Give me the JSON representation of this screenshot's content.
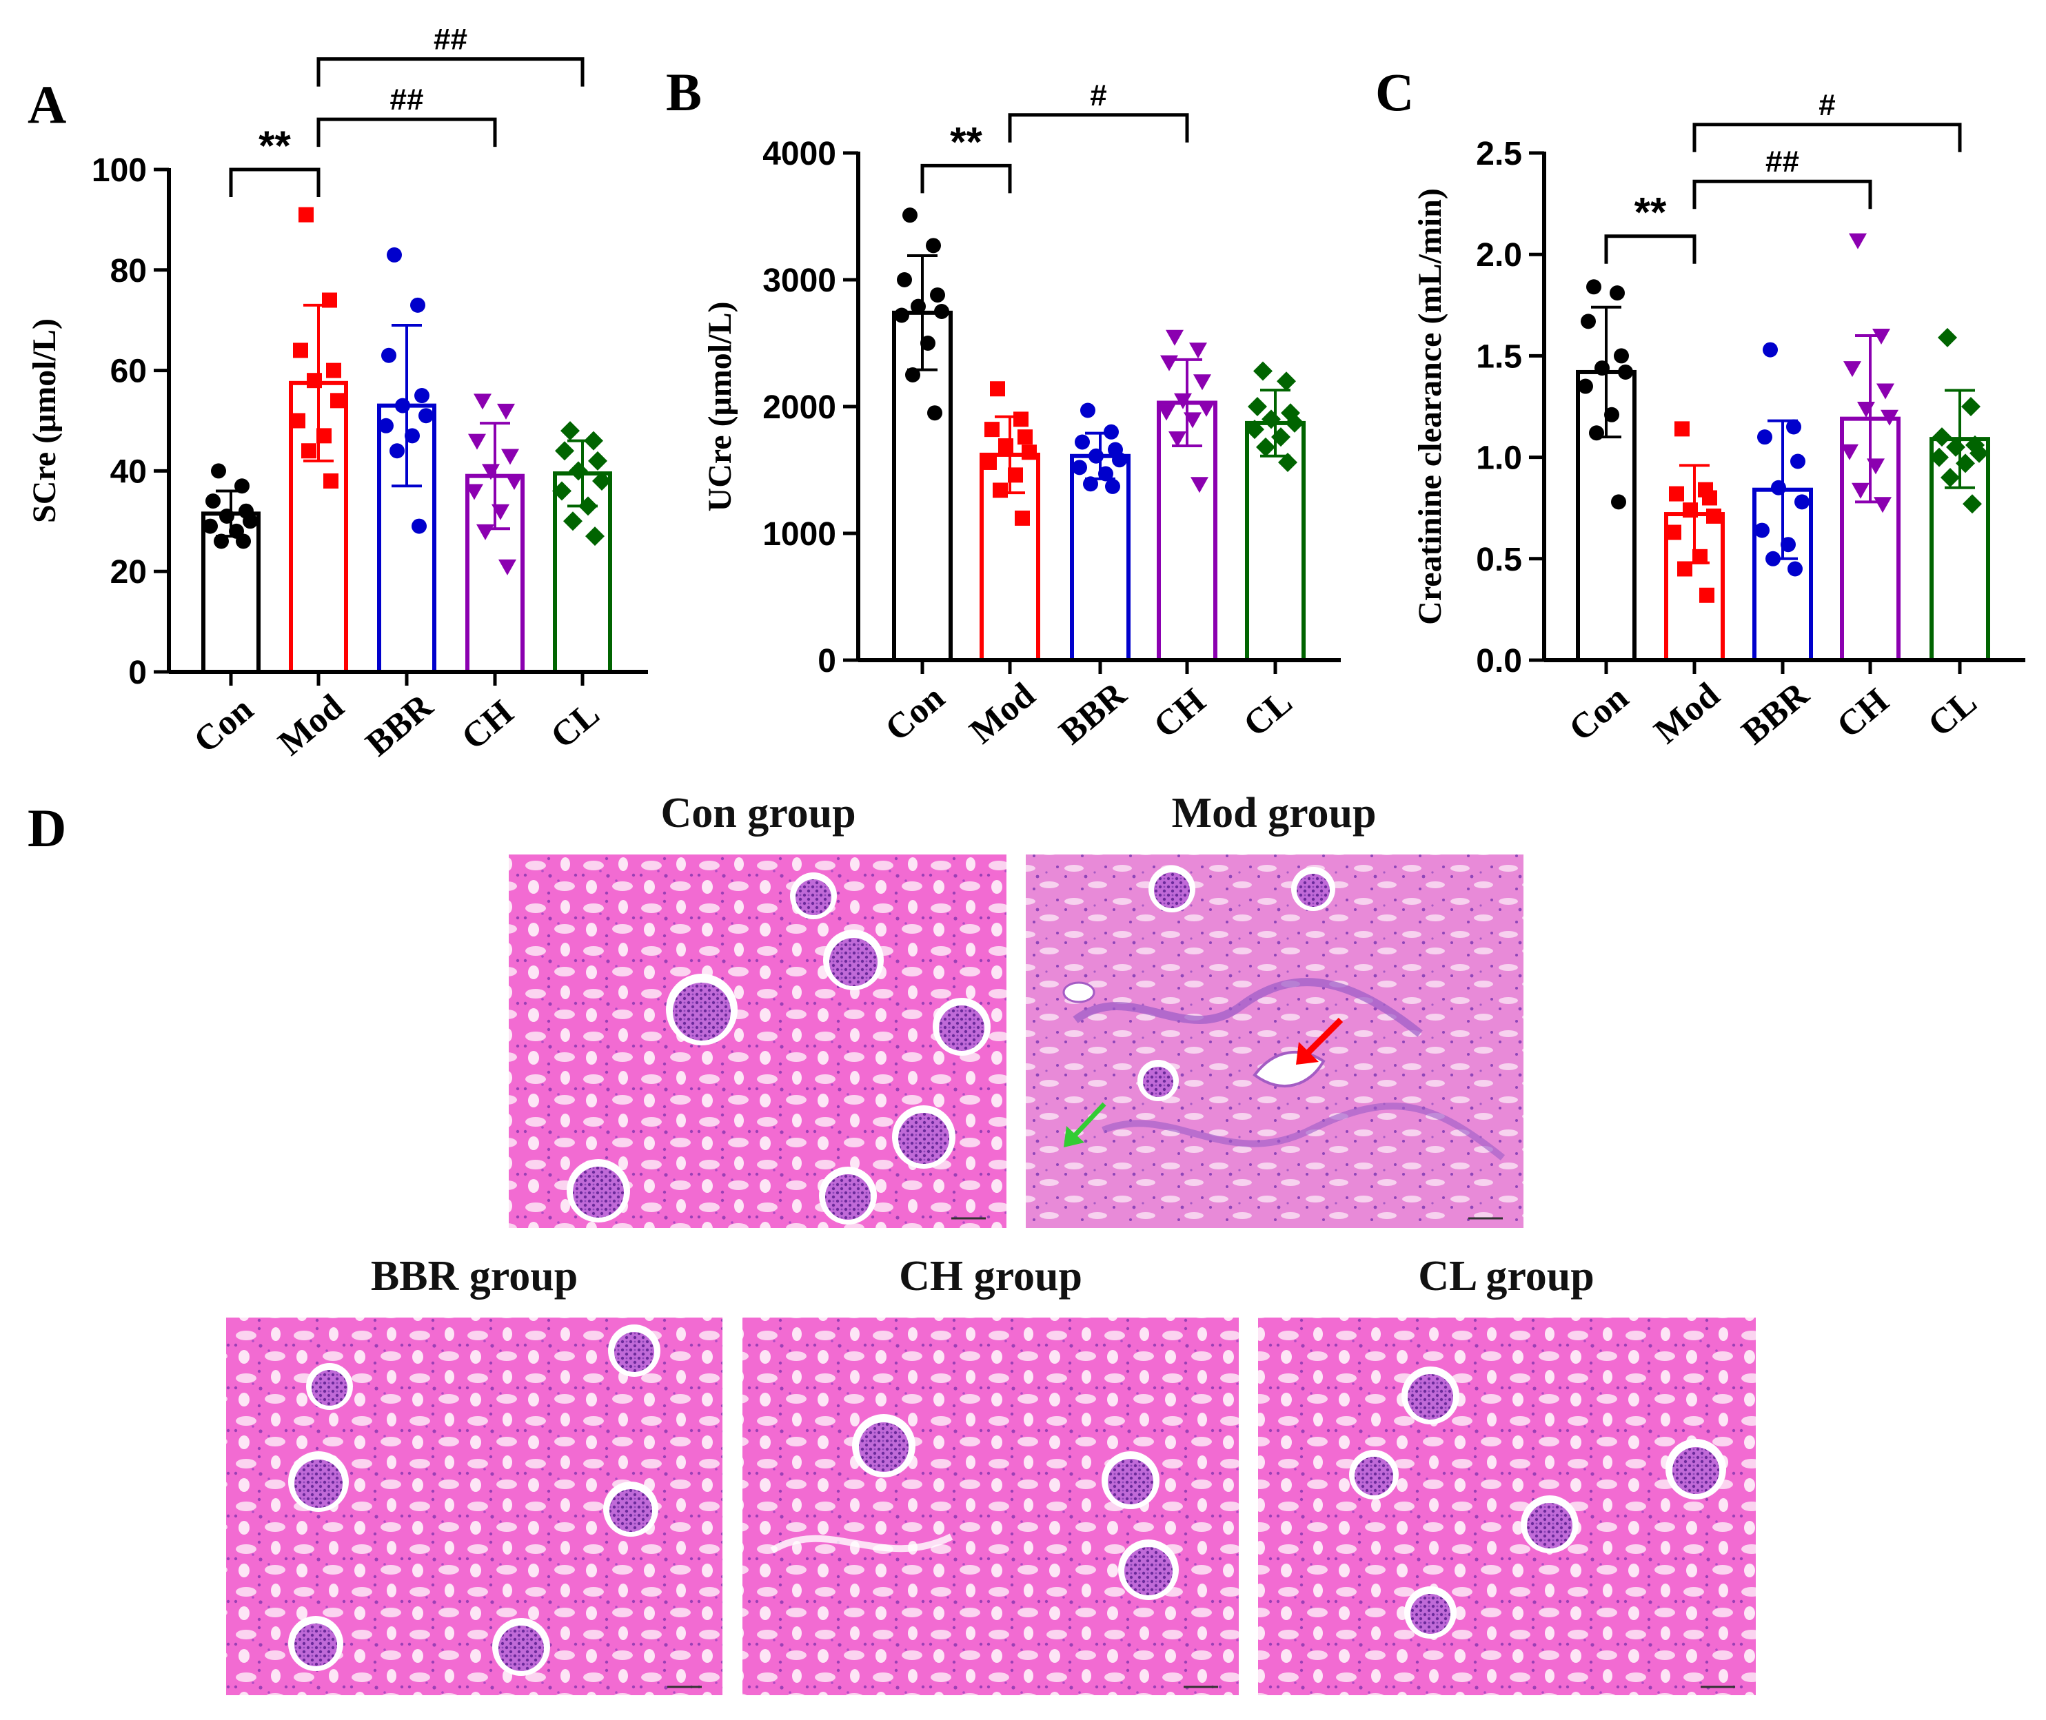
{
  "colors": {
    "Con": "#000000",
    "Mod": "#ff0000",
    "BBR": "#0000cc",
    "CH": "#8b00b0",
    "CL": "#006400",
    "tissue_pink": "#f26bd2",
    "tissue_light": "#fbd4f0",
    "tissue_dark": "#9b3fb5",
    "arrow_red": "#ff0000",
    "arrow_green": "#33cc33"
  },
  "chart_data": [
    {
      "panel_label": "A",
      "type": "bar",
      "ylabel": "SCre (μmol/L)",
      "ylim": [
        0,
        100
      ],
      "yticks": [
        0,
        20,
        40,
        60,
        80,
        100
      ],
      "ytick_labels": [
        "0",
        "20",
        "40",
        "60",
        "80",
        "100"
      ],
      "categories": [
        "Con",
        "Mod",
        "BBR",
        "CH",
        "CL"
      ],
      "means": [
        31.5,
        57.5,
        53,
        39,
        39.5
      ],
      "errors": [
        4.5,
        15.5,
        16,
        10.5,
        6.5
      ],
      "points": [
        [
          40,
          37,
          34,
          32,
          31,
          30,
          29,
          28,
          26,
          26
        ],
        [
          91,
          74,
          64,
          60,
          58,
          54,
          50,
          47,
          44,
          38
        ],
        [
          83,
          73,
          63,
          55,
          53,
          51,
          49,
          47,
          44,
          29
        ],
        [
          54,
          52,
          46,
          43,
          40,
          38,
          36,
          32,
          28,
          21
        ],
        [
          48,
          46,
          44,
          42,
          40,
          38,
          36,
          33,
          30,
          27
        ]
      ],
      "markers": [
        "circle",
        "square",
        "circle",
        "triangle-down",
        "diamond"
      ],
      "brackets": [
        {
          "from": "Con",
          "to": "Mod",
          "label": "**",
          "at": 100
        },
        {
          "from": "Mod",
          "to": "CH",
          "label": "##",
          "at": 110
        },
        {
          "from": "Mod",
          "to": "CL",
          "label": "##",
          "at": 122
        }
      ]
    },
    {
      "panel_label": "B",
      "type": "bar",
      "ylabel": "UCre (μmol/L)",
      "ylim": [
        0,
        4000
      ],
      "yticks": [
        0,
        1000,
        2000,
        3000,
        4000
      ],
      "ytick_labels": [
        "0",
        "1000",
        "2000",
        "3000",
        "4000"
      ],
      "categories": [
        "Con",
        "Mod",
        "BBR",
        "CH",
        "CL"
      ],
      "means": [
        2740,
        1620,
        1610,
        2030,
        1870
      ],
      "errors": [
        450,
        300,
        180,
        340,
        260
      ],
      "points": [
        [
          3510,
          3270,
          3000,
          2880,
          2790,
          2750,
          2720,
          2500,
          2250,
          1950
        ],
        [
          2140,
          1900,
          1820,
          1760,
          1690,
          1640,
          1560,
          1460,
          1340,
          1120
        ],
        [
          1970,
          1800,
          1720,
          1660,
          1610,
          1580,
          1520,
          1470,
          1390,
          1370
        ],
        [
          2550,
          2450,
          2350,
          2200,
          2050,
          1990,
          1960,
          1900,
          1750,
          1390
        ],
        [
          2280,
          2200,
          2000,
          1950,
          1900,
          1870,
          1820,
          1760,
          1680,
          1560
        ]
      ],
      "markers": [
        "circle",
        "square",
        "circle",
        "triangle-down",
        "diamond"
      ],
      "brackets": [
        {
          "from": "Con",
          "to": "Mod",
          "label": "**",
          "at": 3900
        },
        {
          "from": "Mod",
          "to": "CH",
          "label": "#",
          "at": 4300
        }
      ]
    },
    {
      "panel_label": "C",
      "type": "bar",
      "ylabel": "Creatinine clearance (mL/min)",
      "ylim": [
        0,
        2.5
      ],
      "yticks": [
        0,
        0.5,
        1.0,
        1.5,
        2.0,
        2.5
      ],
      "ytick_labels": [
        "0.0",
        "0.5",
        "1.0",
        "1.5",
        "2.0",
        "2.5"
      ],
      "categories": [
        "Con",
        "Mod",
        "BBR",
        "CH",
        "CL"
      ],
      "means": [
        1.42,
        0.72,
        0.84,
        1.19,
        1.09
      ],
      "errors": [
        0.32,
        0.24,
        0.34,
        0.41,
        0.24
      ],
      "points": [
        [
          1.84,
          1.81,
          1.67,
          1.5,
          1.44,
          1.42,
          1.35,
          1.21,
          1.12,
          0.78
        ],
        [
          1.14,
          0.84,
          0.82,
          0.8,
          0.74,
          0.71,
          0.63,
          0.51,
          0.45,
          0.32
        ],
        [
          1.53,
          1.15,
          1.1,
          0.98,
          0.85,
          0.78,
          0.64,
          0.57,
          0.5,
          0.45
        ],
        [
          2.07,
          1.6,
          1.44,
          1.33,
          1.24,
          1.2,
          1.03,
          0.96,
          0.84,
          0.77
        ],
        [
          1.59,
          1.25,
          1.1,
          1.06,
          1.05,
          1.02,
          1.0,
          0.97,
          0.9,
          0.77
        ]
      ],
      "markers": [
        "circle",
        "square",
        "circle",
        "triangle-down",
        "diamond"
      ],
      "brackets": [
        {
          "from": "Con",
          "to": "Mod",
          "label": "**",
          "at": 2.09
        },
        {
          "from": "Mod",
          "to": "CH",
          "label": "##",
          "at": 2.36
        },
        {
          "from": "Mod",
          "to": "CL",
          "label": "#",
          "at": 2.64
        }
      ]
    }
  ],
  "histology": {
    "panel_label": "D",
    "titles": [
      "Con group",
      "Mod group",
      "BBR group",
      "CH group",
      "CL group"
    ]
  }
}
